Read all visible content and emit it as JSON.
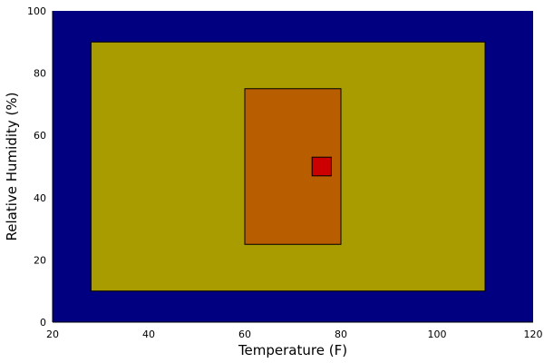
{
  "chart_data": {
    "type": "rectangles",
    "xlabel": "Temperature (F)",
    "ylabel": "Relative Humidity (%)",
    "xlim": [
      20,
      120
    ],
    "ylim": [
      0,
      100
    ],
    "xticks": [
      20,
      40,
      60,
      80,
      100,
      120
    ],
    "yticks": [
      0,
      20,
      40,
      60,
      80,
      100
    ],
    "grid": false,
    "background_color": "#000080",
    "regions": [
      {
        "x": [
          28,
          110
        ],
        "y": [
          10,
          90
        ],
        "color": "#a89c00"
      },
      {
        "x": [
          60,
          80
        ],
        "y": [
          25,
          75
        ],
        "color": "#b85d00"
      },
      {
        "x": [
          74,
          78
        ],
        "y": [
          47,
          53
        ],
        "color": "#cc0000"
      }
    ]
  }
}
